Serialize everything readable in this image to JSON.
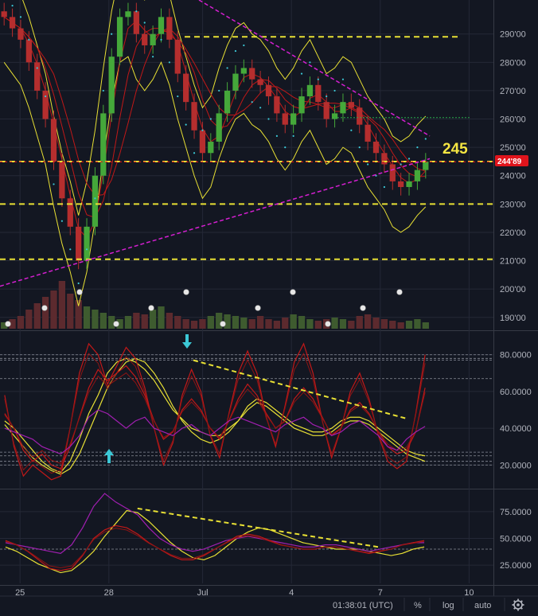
{
  "chart_data": [
    {
      "type": "candlestick",
      "title": "",
      "ylim": [
        186,
        302
      ],
      "y_ticks": [
        190,
        200,
        210,
        220,
        230,
        240,
        250,
        260,
        270,
        280,
        290
      ],
      "y_tick_labels": [
        "190'00",
        "200'00",
        "210'00",
        "220'00",
        "230'00",
        "240'00",
        "250'00",
        "260'00",
        "270'00",
        "280'00",
        "290'00"
      ],
      "last_price": 244.89,
      "last_price_label": "244'89",
      "annotation": "245",
      "horizontal_levels": [
        289,
        245,
        230,
        210.5
      ],
      "resistance_line": {
        "from": [
          0,
          302
        ],
        "to": [
          1,
          254
        ]
      },
      "support_line": {
        "from": [
          0,
          201
        ],
        "to": [
          1,
          246
        ]
      },
      "candles_close": [
        296,
        292,
        288,
        280,
        270,
        260,
        245,
        232,
        222,
        210,
        222,
        240,
        262,
        282,
        296,
        298,
        290,
        286,
        290,
        296,
        288,
        276,
        266,
        256,
        248,
        252,
        262,
        270,
        276,
        278,
        274,
        272,
        268,
        262,
        258,
        262,
        268,
        272,
        266,
        260,
        262,
        266,
        264,
        258,
        252,
        248,
        244,
        238,
        236,
        238,
        242,
        245
      ],
      "volume": [
        4,
        6,
        8,
        12,
        16,
        20,
        24,
        30,
        22,
        18,
        14,
        12,
        10,
        8,
        6,
        8,
        10,
        9,
        12,
        14,
        10,
        8,
        6,
        5,
        6,
        8,
        10,
        9,
        8,
        7,
        6,
        8,
        6,
        5,
        7,
        9,
        8,
        6,
        5,
        6,
        7,
        6,
        5,
        8,
        9,
        7,
        6,
        5,
        4,
        5,
        6,
        4
      ]
    },
    {
      "type": "line",
      "title": "",
      "ylim": [
        8,
        92
      ],
      "y_ticks": [
        20,
        40,
        60,
        80
      ],
      "y_tick_labels": [
        "20.0000",
        "40.0000",
        "60.0000",
        "80.0000"
      ],
      "levels": [
        80,
        78,
        77,
        67,
        27,
        25,
        22,
        20
      ],
      "series": [
        {
          "values": [
            44,
            40,
            34,
            28,
            22,
            18,
            16,
            22,
            34,
            48,
            58,
            70,
            76,
            78,
            76,
            72,
            66,
            58,
            50,
            45,
            40,
            38,
            36,
            36,
            40,
            44,
            52,
            56,
            54,
            50,
            46,
            42,
            40,
            38,
            38,
            40,
            44,
            46,
            46,
            44,
            40,
            36,
            32,
            28,
            26,
            25
          ]
        },
        {
          "values": [
            42,
            36,
            30,
            24,
            20,
            17,
            15,
            18,
            26,
            38,
            50,
            62,
            70,
            76,
            78,
            76,
            70,
            62,
            52,
            44,
            38,
            34,
            32,
            34,
            38,
            44,
            50,
            54,
            52,
            48,
            44,
            40,
            38,
            36,
            36,
            38,
            42,
            44,
            44,
            42,
            38,
            34,
            30,
            26,
            24,
            22
          ]
        },
        {
          "values": [
            58,
            30,
            14,
            20,
            16,
            12,
            14,
            40,
            70,
            86,
            80,
            64,
            74,
            84,
            78,
            62,
            40,
            20,
            32,
            58,
            72,
            60,
            36,
            24,
            48,
            70,
            82,
            70,
            46,
            30,
            52,
            76,
            86,
            70,
            44,
            24,
            40,
            60,
            70,
            56,
            36,
            22,
            18,
            22,
            48,
            80
          ]
        },
        {
          "values": [
            48,
            40,
            28,
            22,
            26,
            20,
            18,
            30,
            46,
            62,
            72,
            66,
            70,
            74,
            68,
            58,
            44,
            34,
            38,
            50,
            56,
            50,
            40,
            34,
            44,
            56,
            64,
            58,
            48,
            40,
            44,
            56,
            62,
            56,
            46,
            36,
            40,
            50,
            54,
            48,
            38,
            30,
            26,
            28,
            38,
            62
          ]
        },
        {
          "values": [
            40,
            38,
            36,
            34,
            30,
            28,
            26,
            30,
            36,
            46,
            50,
            48,
            44,
            40,
            44,
            46,
            40,
            38,
            36,
            40,
            42,
            38,
            36,
            40,
            44,
            46,
            44,
            42,
            40,
            38,
            42,
            44,
            46,
            42,
            40,
            36,
            38,
            42,
            44,
            40,
            36,
            30,
            28,
            34,
            38,
            41
          ]
        }
      ],
      "trend_line": {
        "from": [
          0.45,
          77
        ],
        "to": [
          0.95,
          45
        ]
      },
      "arrows": [
        "down",
        "up"
      ]
    },
    {
      "type": "line",
      "title": "",
      "ylim": [
        8,
        95
      ],
      "y_ticks": [
        25,
        50,
        75
      ],
      "y_tick_labels": [
        "25.0000",
        "50.0000",
        "75.0000"
      ],
      "levels": [
        40
      ],
      "series": [
        {
          "values": [
            42,
            38,
            32,
            26,
            22,
            18,
            20,
            28,
            38,
            52,
            64,
            76,
            74,
            66,
            56,
            46,
            38,
            32,
            30,
            34,
            42,
            50,
            56,
            60,
            58,
            54,
            50,
            46,
            44,
            42,
            40,
            40,
            40,
            38,
            36,
            34,
            36,
            40,
            42
          ]
        },
        {
          "values": [
            46,
            44,
            42,
            40,
            38,
            36,
            44,
            60,
            80,
            92,
            84,
            78,
            72,
            60,
            50,
            44,
            40,
            38,
            40,
            44,
            48,
            50,
            52,
            50,
            48,
            46,
            44,
            42,
            42,
            44,
            44,
            42,
            40,
            38,
            40,
            42,
            44,
            46,
            46
          ]
        },
        {
          "values": [
            48,
            44,
            38,
            30,
            22,
            20,
            22,
            34,
            50,
            58,
            62,
            60,
            54,
            46,
            40,
            34,
            30,
            30,
            34,
            40,
            46,
            52,
            54,
            52,
            48,
            44,
            42,
            40,
            40,
            42,
            42,
            40,
            38,
            36,
            38,
            40,
            44,
            46,
            48
          ]
        }
      ],
      "trend_line": {
        "from": [
          0.32,
          78
        ],
        "to": [
          0.88,
          42
        ]
      }
    }
  ],
  "x_axis": {
    "labels": [
      "25",
      "28",
      "Jul",
      "4",
      "7",
      "10"
    ],
    "positions": [
      0.06,
      0.24,
      0.43,
      0.61,
      0.79,
      0.97
    ]
  },
  "controls": {
    "clock": "01:38:01 (UTC)",
    "percent": "%",
    "log": "log",
    "auto": "auto",
    "settings_icon": "gear-icon"
  },
  "colors": {
    "background": "#131722",
    "grid": "#242836",
    "up": "#45a83a",
    "down": "#b52e2e",
    "yellow": "#e8e034",
    "magenta": "#d51fd1",
    "cyan": "#3cc8d6",
    "red_line": "#c01818",
    "purple": "#a01fb0",
    "price_badge": "#e0141c"
  }
}
